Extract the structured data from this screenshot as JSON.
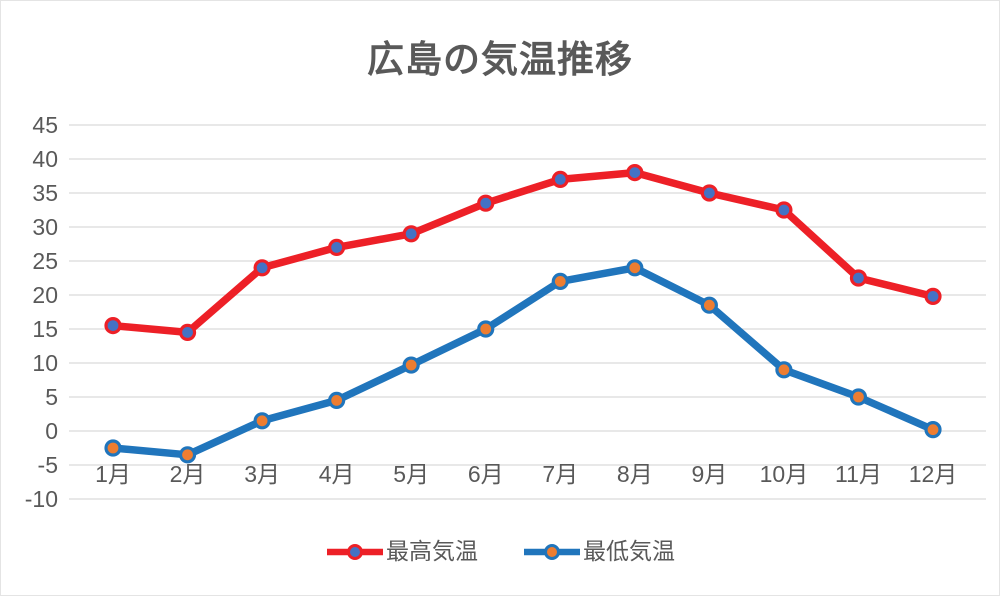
{
  "chart_data": {
    "type": "line",
    "title": "広島の気温推移",
    "categories": [
      "1月",
      "2月",
      "3月",
      "4月",
      "5月",
      "6月",
      "7月",
      "8月",
      "9月",
      "10月",
      "11月",
      "12月"
    ],
    "series": [
      {
        "name": "最高気温",
        "values": [
          15.5,
          14.5,
          24,
          27,
          29,
          33.5,
          37,
          38,
          35,
          32.5,
          22.5,
          19.8
        ],
        "line_color": "#ED2027",
        "marker_fill": "#4472C4"
      },
      {
        "name": "最低気温",
        "values": [
          -2.5,
          -3.5,
          1.5,
          4.5,
          9.7,
          15,
          22,
          24,
          18.5,
          9,
          5,
          0.2
        ],
        "line_color": "#2075BC",
        "marker_fill": "#ED7D31"
      }
    ],
    "y_axis": {
      "min": -10,
      "max": 45,
      "step": 5,
      "ticks": [
        45,
        40,
        35,
        30,
        25,
        20,
        15,
        10,
        5,
        0,
        -5,
        -10
      ]
    },
    "legend_position": "bottom",
    "grid": true,
    "styles": {
      "text_color": "#595959",
      "gridline_color": "#D9D9D9",
      "background": "#FFFFFF"
    }
  }
}
